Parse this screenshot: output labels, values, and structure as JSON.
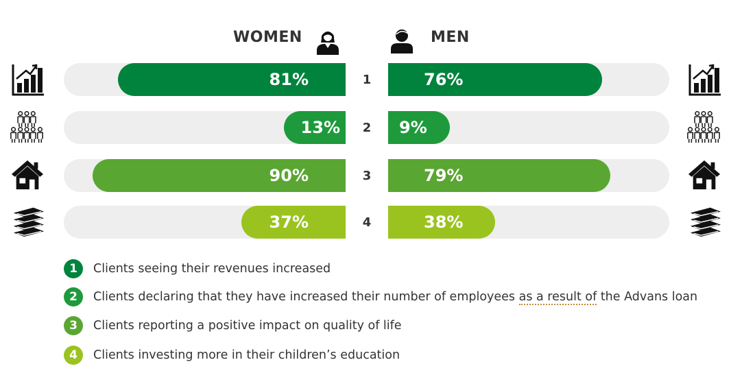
{
  "headers": {
    "women": "WOMEN",
    "men": "MEN"
  },
  "colors": {
    "dark_green": "#00833d",
    "medium_green": "#1e9a3c",
    "light_green": "#5aa632",
    "lime": "#9bc31f",
    "track": "#eeeeee"
  },
  "icons": [
    "bar-chart-growth-icon",
    "people-group-icon",
    "house-icon",
    "books-stack-icon"
  ],
  "chart_data": {
    "type": "bar",
    "categories": [
      "1",
      "2",
      "3",
      "4"
    ],
    "series": [
      {
        "name": "WOMEN",
        "values": [
          81,
          13,
          90,
          37
        ],
        "labels": [
          "81%",
          "13%",
          "90%",
          "37%"
        ]
      },
      {
        "name": "MEN",
        "values": [
          76,
          9,
          79,
          38
        ],
        "labels": [
          "76%",
          "9%",
          "79%",
          "38%"
        ]
      }
    ],
    "ylim": [
      0,
      100
    ],
    "legend": [
      {
        "num": "1",
        "text": "Clients seeing their revenues increased"
      },
      {
        "num": "2",
        "text_before": "Clients declaring that they have increased their number of employees ",
        "text_marked": "as a result of",
        "text_after": " the Advans loan"
      },
      {
        "num": "3",
        "text": "Clients reporting a positive impact on quality of life"
      },
      {
        "num": "4",
        "text": "Clients investing more in their children’s education"
      }
    ]
  }
}
